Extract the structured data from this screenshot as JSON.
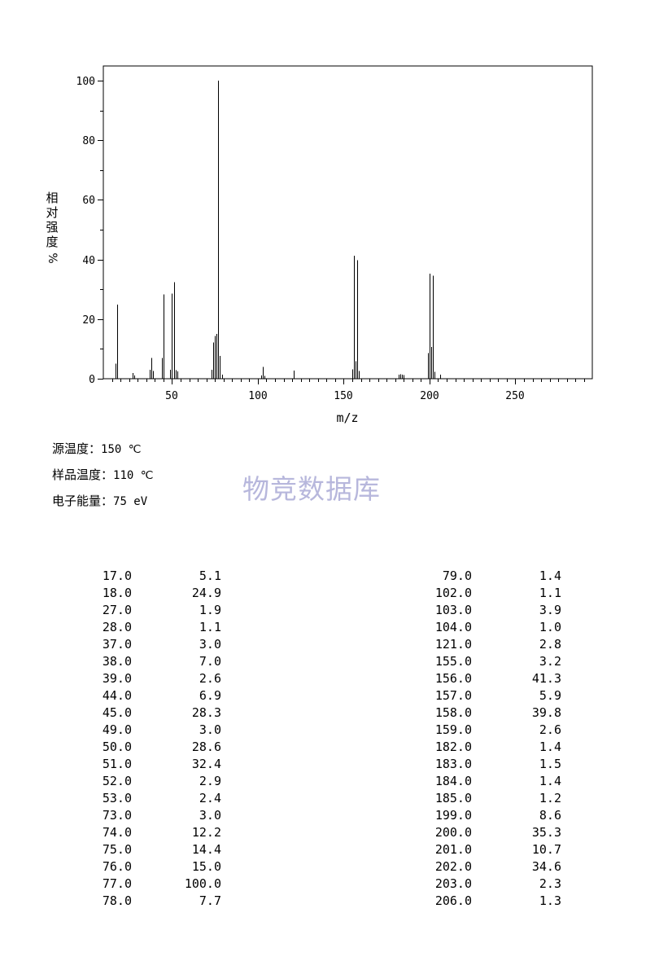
{
  "chart_data": {
    "type": "bar",
    "xlabel": "m/z",
    "ylabel_chars": [
      "相",
      "对",
      "强",
      "度"
    ],
    "ylabel_unit": "%",
    "xlim": [
      10,
      295
    ],
    "ylim": [
      0,
      105
    ],
    "x_ticks": [
      50,
      100,
      150,
      200,
      250
    ],
    "y_ticks": [
      0,
      20,
      40,
      60,
      80,
      100
    ],
    "bar_color": "#000000",
    "peaks": [
      {
        "mz": 17.0,
        "intensity": 5.1
      },
      {
        "mz": 18.0,
        "intensity": 24.9
      },
      {
        "mz": 27.0,
        "intensity": 1.9
      },
      {
        "mz": 28.0,
        "intensity": 1.1
      },
      {
        "mz": 37.0,
        "intensity": 3.0
      },
      {
        "mz": 38.0,
        "intensity": 7.0
      },
      {
        "mz": 39.0,
        "intensity": 2.6
      },
      {
        "mz": 44.0,
        "intensity": 6.9
      },
      {
        "mz": 45.0,
        "intensity": 28.3
      },
      {
        "mz": 49.0,
        "intensity": 3.0
      },
      {
        "mz": 50.0,
        "intensity": 28.6
      },
      {
        "mz": 51.0,
        "intensity": 32.4
      },
      {
        "mz": 52.0,
        "intensity": 2.9
      },
      {
        "mz": 53.0,
        "intensity": 2.4
      },
      {
        "mz": 73.0,
        "intensity": 3.0
      },
      {
        "mz": 74.0,
        "intensity": 12.2
      },
      {
        "mz": 75.0,
        "intensity": 14.4
      },
      {
        "mz": 76.0,
        "intensity": 15.0
      },
      {
        "mz": 77.0,
        "intensity": 100.0
      },
      {
        "mz": 78.0,
        "intensity": 7.7
      },
      {
        "mz": 79.0,
        "intensity": 1.4
      },
      {
        "mz": 102.0,
        "intensity": 1.1
      },
      {
        "mz": 103.0,
        "intensity": 3.9
      },
      {
        "mz": 104.0,
        "intensity": 1.0
      },
      {
        "mz": 121.0,
        "intensity": 2.8
      },
      {
        "mz": 155.0,
        "intensity": 3.2
      },
      {
        "mz": 156.0,
        "intensity": 41.3
      },
      {
        "mz": 157.0,
        "intensity": 5.9
      },
      {
        "mz": 158.0,
        "intensity": 39.8
      },
      {
        "mz": 159.0,
        "intensity": 2.6
      },
      {
        "mz": 182.0,
        "intensity": 1.4
      },
      {
        "mz": 183.0,
        "intensity": 1.5
      },
      {
        "mz": 184.0,
        "intensity": 1.4
      },
      {
        "mz": 185.0,
        "intensity": 1.2
      },
      {
        "mz": 199.0,
        "intensity": 8.6
      },
      {
        "mz": 200.0,
        "intensity": 35.3
      },
      {
        "mz": 201.0,
        "intensity": 10.7
      },
      {
        "mz": 202.0,
        "intensity": 34.6
      },
      {
        "mz": 203.0,
        "intensity": 2.3
      },
      {
        "mz": 206.0,
        "intensity": 1.3
      }
    ]
  },
  "params": [
    {
      "label": "源温度：",
      "value": "150 ℃"
    },
    {
      "label": "样品温度：",
      "value": "110 ℃"
    },
    {
      "label": "电子能量：",
      "value": "75 eV"
    }
  ],
  "watermark": "物竞数据库",
  "table_left": [
    {
      "mz": "17.0",
      "ab": "5.1"
    },
    {
      "mz": "18.0",
      "ab": "24.9"
    },
    {
      "mz": "27.0",
      "ab": "1.9"
    },
    {
      "mz": "28.0",
      "ab": "1.1"
    },
    {
      "mz": "37.0",
      "ab": "3.0"
    },
    {
      "mz": "38.0",
      "ab": "7.0"
    },
    {
      "mz": "39.0",
      "ab": "2.6"
    },
    {
      "mz": "44.0",
      "ab": "6.9"
    },
    {
      "mz": "45.0",
      "ab": "28.3"
    },
    {
      "mz": "49.0",
      "ab": "3.0"
    },
    {
      "mz": "50.0",
      "ab": "28.6"
    },
    {
      "mz": "51.0",
      "ab": "32.4"
    },
    {
      "mz": "52.0",
      "ab": "2.9"
    },
    {
      "mz": "53.0",
      "ab": "2.4"
    },
    {
      "mz": "73.0",
      "ab": "3.0"
    },
    {
      "mz": "74.0",
      "ab": "12.2"
    },
    {
      "mz": "75.0",
      "ab": "14.4"
    },
    {
      "mz": "76.0",
      "ab": "15.0"
    },
    {
      "mz": "77.0",
      "ab": "100.0"
    },
    {
      "mz": "78.0",
      "ab": "7.7"
    }
  ],
  "table_right": [
    {
      "mz": "79.0",
      "ab": "1.4"
    },
    {
      "mz": "102.0",
      "ab": "1.1"
    },
    {
      "mz": "103.0",
      "ab": "3.9"
    },
    {
      "mz": "104.0",
      "ab": "1.0"
    },
    {
      "mz": "121.0",
      "ab": "2.8"
    },
    {
      "mz": "155.0",
      "ab": "3.2"
    },
    {
      "mz": "156.0",
      "ab": "41.3"
    },
    {
      "mz": "157.0",
      "ab": "5.9"
    },
    {
      "mz": "158.0",
      "ab": "39.8"
    },
    {
      "mz": "159.0",
      "ab": "2.6"
    },
    {
      "mz": "182.0",
      "ab": "1.4"
    },
    {
      "mz": "183.0",
      "ab": "1.5"
    },
    {
      "mz": "184.0",
      "ab": "1.4"
    },
    {
      "mz": "185.0",
      "ab": "1.2"
    },
    {
      "mz": "199.0",
      "ab": "8.6"
    },
    {
      "mz": "200.0",
      "ab": "35.3"
    },
    {
      "mz": "201.0",
      "ab": "10.7"
    },
    {
      "mz": "202.0",
      "ab": "34.6"
    },
    {
      "mz": "203.0",
      "ab": "2.3"
    },
    {
      "mz": "206.0",
      "ab": "1.3"
    }
  ]
}
